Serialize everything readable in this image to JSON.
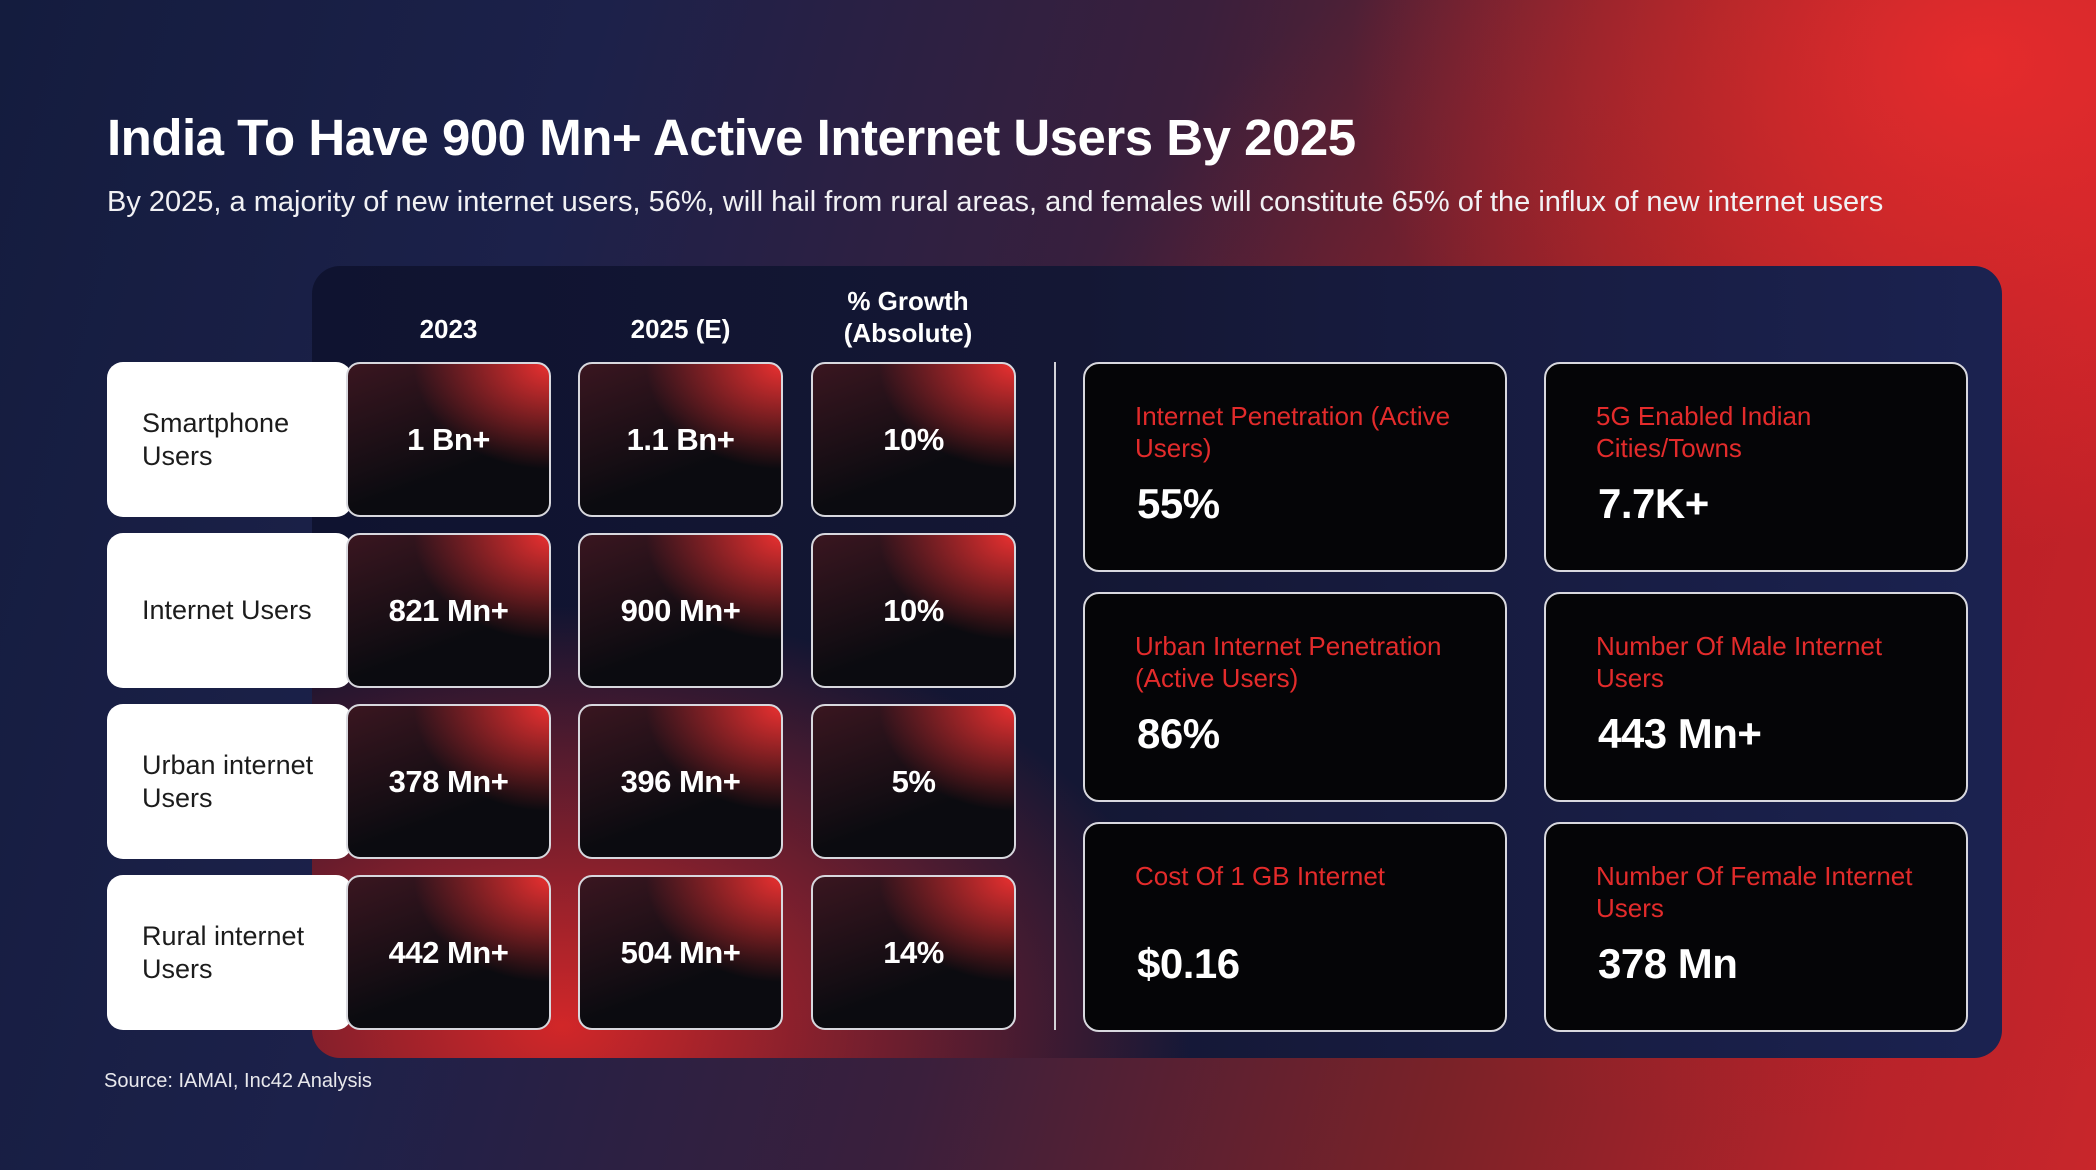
{
  "header": {
    "title": "India To Have 900 Mn+ Active Internet Users By 2025",
    "subtitle": "By 2025, a majority of new internet users, 56%, will hail from rural areas, and females will constitute 65% of the influx of new internet users"
  },
  "table": {
    "columns": [
      "2023",
      "2025 (E)",
      "% Growth (Absolute)"
    ],
    "rows": [
      {
        "label": "Smartphone Users",
        "y2023": "1 Bn+",
        "y2025": "1.1 Bn+",
        "growth": "10%"
      },
      {
        "label": "Internet Users",
        "y2023": "821 Mn+",
        "y2025": "900 Mn+",
        "growth": "10%"
      },
      {
        "label": "Urban internet Users",
        "y2023": "378 Mn+",
        "y2025": "396 Mn+",
        "growth": "5%"
      },
      {
        "label": "Rural internet Users",
        "y2023": "442 Mn+",
        "y2025": "504 Mn+",
        "growth": "14%"
      }
    ]
  },
  "stats": [
    {
      "label": "Internet Penetration (Active Users)",
      "value": "55%"
    },
    {
      "label": "5G Enabled Indian Cities/Towns",
      "value": "7.7K+"
    },
    {
      "label": "Urban Internet Penetration (Active Users)",
      "value": "86%"
    },
    {
      "label": "Number Of Male Internet Users",
      "value": "443 Mn+"
    },
    {
      "label": "Cost Of 1 GB Internet",
      "value": "$0.16"
    },
    {
      "label": "Number Of Female Internet Users",
      "value": "378 Mn"
    }
  ],
  "footer": {
    "source": "Source: IAMAI, Inc42 Analysis"
  },
  "colors": {
    "accent_red": "#e32b2b",
    "navy": "#141c3e"
  }
}
